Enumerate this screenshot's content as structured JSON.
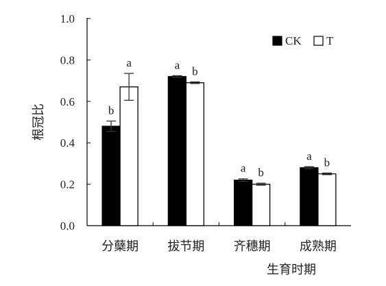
{
  "chart_data": {
    "type": "bar",
    "title": "",
    "xlabel": "生育时期",
    "ylabel": "根冠比",
    "ylim": [
      0,
      1.0
    ],
    "yticks": [
      "0.0",
      "0.2",
      "0.4",
      "0.6",
      "0.8",
      "1.0"
    ],
    "categories": [
      "分蘖期",
      "拔节期",
      "齐穗期",
      "成熟期"
    ],
    "series": [
      {
        "name": "CK",
        "color": "#000000",
        "values": [
          0.48,
          0.72,
          0.22,
          0.28
        ],
        "errors": [
          0.025,
          0.004,
          0.006,
          0.005
        ],
        "labels": [
          "b",
          "a",
          "a",
          "a"
        ]
      },
      {
        "name": "T",
        "color": "#ffffff",
        "values": [
          0.67,
          0.69,
          0.2,
          0.25
        ],
        "errors": [
          0.065,
          0.004,
          0.005,
          0.004
        ],
        "labels": [
          "a",
          "b",
          "b",
          "b"
        ]
      }
    ],
    "legend_position": "top-right",
    "grid": false
  }
}
